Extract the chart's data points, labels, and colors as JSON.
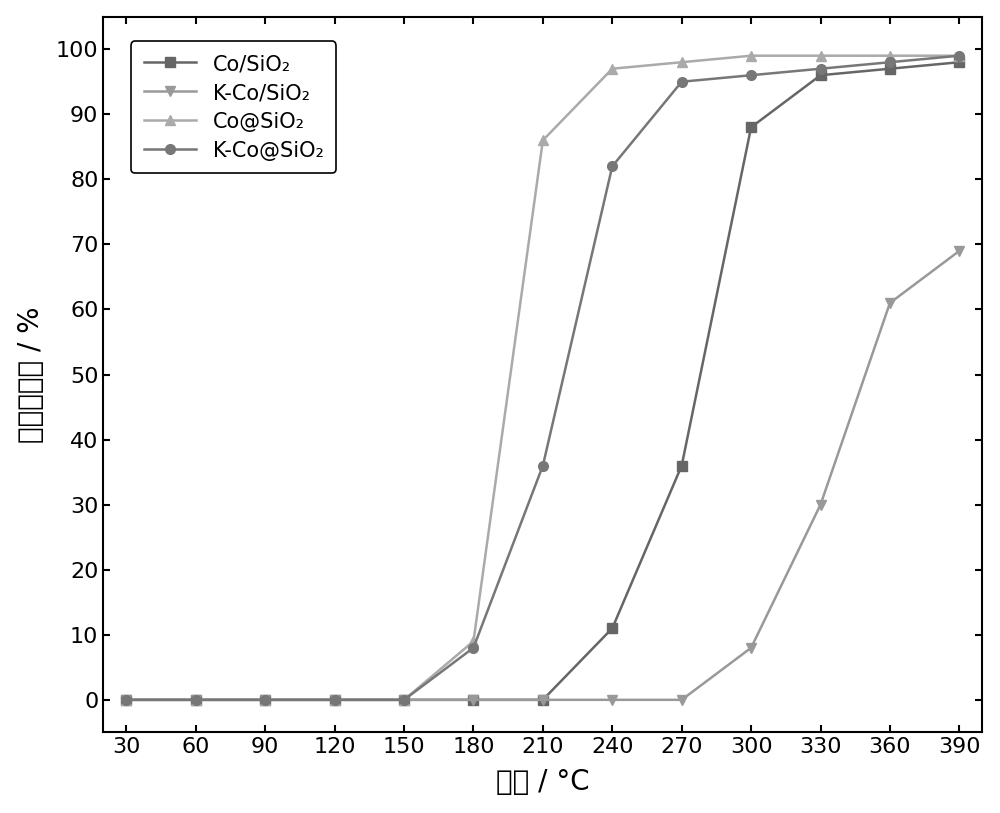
{
  "series": [
    {
      "label": "Co/SiO₂",
      "marker": "s",
      "color": "#666666",
      "linewidth": 1.8,
      "markersize": 7,
      "x": [
        30,
        60,
        90,
        120,
        150,
        180,
        210,
        240,
        270,
        300,
        330,
        360,
        390
      ],
      "y": [
        0,
        0,
        0,
        0,
        0,
        0,
        0,
        11,
        36,
        88,
        96,
        97,
        98
      ]
    },
    {
      "label": "K-Co/SiO₂",
      "marker": "v",
      "color": "#999999",
      "linewidth": 1.8,
      "markersize": 7,
      "x": [
        30,
        60,
        90,
        120,
        150,
        180,
        210,
        240,
        270,
        300,
        330,
        360,
        390
      ],
      "y": [
        0,
        0,
        0,
        0,
        0,
        0,
        0,
        0,
        0,
        8,
        30,
        61,
        69
      ]
    },
    {
      "label": "Co@SiO₂",
      "marker": "^",
      "color": "#aaaaaa",
      "linewidth": 1.8,
      "markersize": 7,
      "x": [
        30,
        60,
        90,
        120,
        150,
        180,
        210,
        240,
        270,
        300,
        330,
        360,
        390
      ],
      "y": [
        0,
        0,
        0,
        0,
        0,
        9,
        86,
        97,
        98,
        99,
        99,
        99,
        99
      ]
    },
    {
      "label": "K-Co@SiO₂",
      "marker": "o",
      "color": "#777777",
      "linewidth": 1.8,
      "markersize": 7,
      "x": [
        30,
        60,
        90,
        120,
        150,
        180,
        210,
        240,
        270,
        300,
        330,
        360,
        390
      ],
      "y": [
        0,
        0,
        0,
        0,
        0,
        8,
        36,
        82,
        95,
        96,
        97,
        98,
        99
      ]
    }
  ],
  "xlabel": "温度 / °C",
  "ylabel": "丙烷转化率 / %",
  "xlim": [
    20,
    400
  ],
  "ylim": [
    -5,
    105
  ],
  "xticks": [
    30,
    60,
    90,
    120,
    150,
    180,
    210,
    240,
    270,
    300,
    330,
    360,
    390
  ],
  "yticks": [
    0,
    10,
    20,
    30,
    40,
    50,
    60,
    70,
    80,
    90,
    100
  ],
  "xlabel_fontsize": 20,
  "ylabel_fontsize": 20,
  "tick_fontsize": 16,
  "legend_fontsize": 15,
  "background_color": "#ffffff",
  "figure_facecolor": "#ffffff"
}
